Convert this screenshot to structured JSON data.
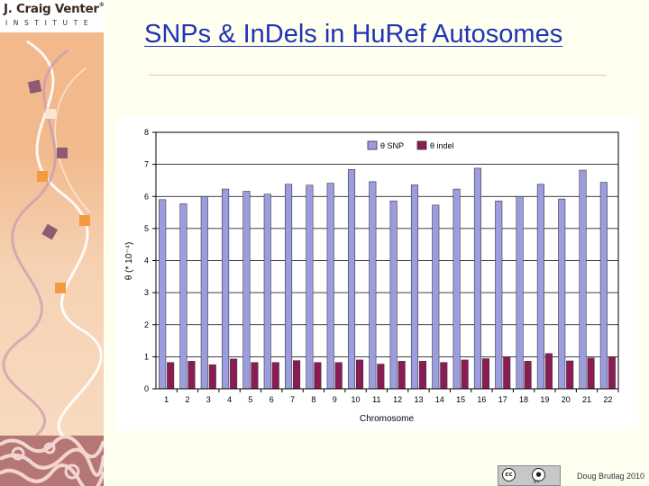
{
  "logo": {
    "name": "J. Craig Venter",
    "trademark": "®",
    "institute": "INSTITUTE"
  },
  "slide": {
    "title": "SNPs & InDels in HuRef Autosomes",
    "author": "Doug Brutlag 2010"
  },
  "license_badge": {
    "icon": "creative-commons-by-icon",
    "cc_text": "cc",
    "by_text": "BY"
  },
  "colors": {
    "title": "#1f33b8",
    "snp_bar": "#9c9ce0",
    "indel_bar": "#8b1a55",
    "background": "#fffff0"
  },
  "chart_data": {
    "type": "bar",
    "categories": [
      "1",
      "2",
      "3",
      "4",
      "5",
      "6",
      "7",
      "8",
      "9",
      "10",
      "11",
      "12",
      "13",
      "14",
      "15",
      "16",
      "17",
      "18",
      "19",
      "20",
      "21",
      "22"
    ],
    "series": [
      {
        "name": "θ SNP",
        "values": [
          5.9,
          5.77,
          6.0,
          6.23,
          6.16,
          6.07,
          6.38,
          6.35,
          6.41,
          6.84,
          6.46,
          5.86,
          6.36,
          5.73,
          6.23,
          6.88,
          5.86,
          6.0,
          6.38,
          5.92,
          6.82,
          6.44
        ]
      },
      {
        "name": "θ indel",
        "values": [
          0.82,
          0.86,
          0.75,
          0.93,
          0.82,
          0.82,
          0.88,
          0.82,
          0.82,
          0.9,
          0.77,
          0.86,
          0.86,
          0.82,
          0.9,
          0.94,
          1.0,
          0.86,
          1.1,
          0.87,
          0.96,
          1.0
        ]
      }
    ],
    "xlabel": "Chromosome",
    "ylabel": "θ (* 10⁻⁴)",
    "ylim": [
      0,
      8
    ],
    "yticks": [
      0,
      1,
      2,
      3,
      4,
      5,
      6,
      7,
      8
    ],
    "grid": true,
    "legend": "top-center"
  }
}
